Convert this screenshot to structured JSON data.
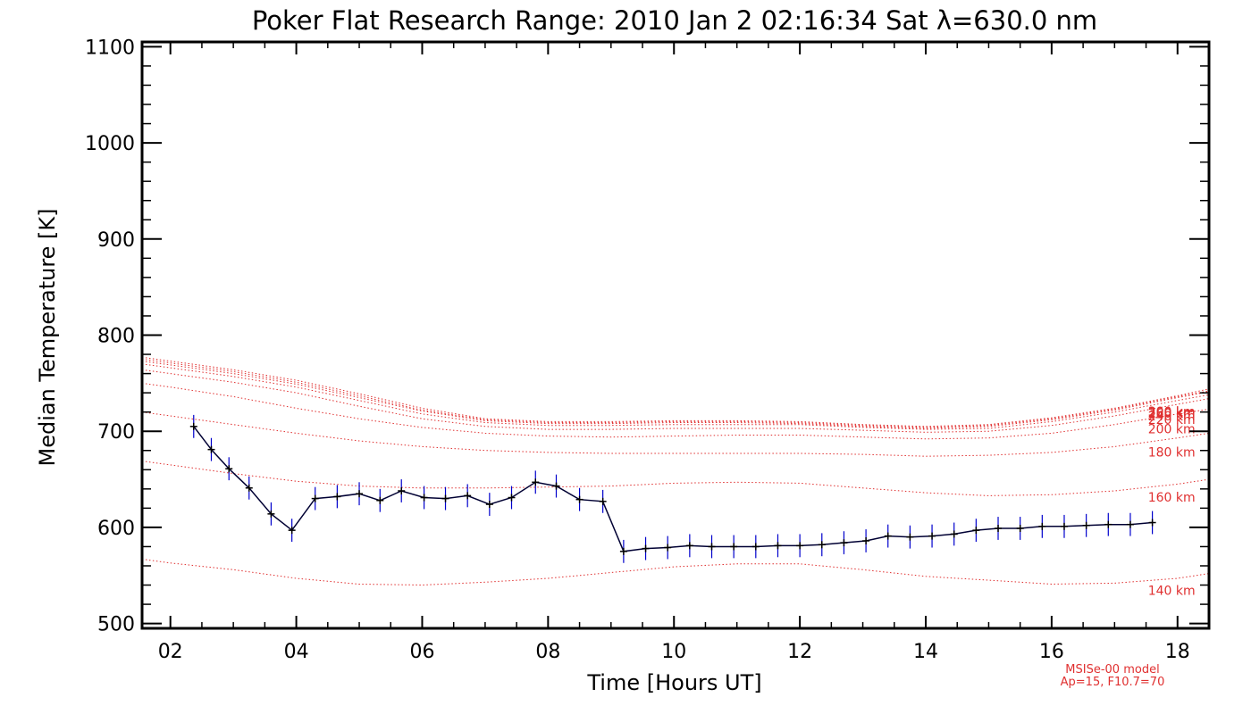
{
  "chart_data": {
    "type": "line",
    "title": "Poker Flat Research Range: 2010 Jan  2 02:16:34 Sat λ=630.0 nm",
    "xlabel": "Time [Hours UT]",
    "ylabel": "Median Temperature [K]",
    "xlim": [
      1.55,
      18.5
    ],
    "ylim": [
      495,
      1105
    ],
    "xticks": [
      2,
      4,
      6,
      8,
      10,
      12,
      14,
      16,
      18
    ],
    "xtick_labels": [
      "02",
      "04",
      "06",
      "08",
      "10",
      "12",
      "14",
      "16",
      "18"
    ],
    "yticks": [
      500,
      600,
      700,
      800,
      900,
      1000,
      1100
    ],
    "ytick_labels": [
      "500",
      "600",
      "700",
      "800",
      "900",
      "1000",
      "1100"
    ],
    "grid": false,
    "measured": {
      "color": "#000033",
      "errorbar_color": "#0000cc",
      "errorbar_halfwidth": 12,
      "x": [
        2.37,
        2.65,
        2.93,
        3.25,
        3.6,
        3.93,
        4.3,
        4.65,
        5.0,
        5.33,
        5.67,
        6.03,
        6.37,
        6.72,
        7.07,
        7.42,
        7.8,
        8.13,
        8.5,
        8.87,
        9.2,
        9.55,
        9.9,
        10.25,
        10.6,
        10.95,
        11.3,
        11.65,
        12.0,
        12.35,
        12.7,
        13.05,
        13.4,
        13.75,
        14.1,
        14.45,
        14.8,
        15.15,
        15.5,
        15.85,
        16.2,
        16.55,
        16.9,
        17.25,
        17.6
      ],
      "y": [
        705,
        681,
        661,
        641,
        614,
        597,
        630,
        632,
        635,
        628,
        638,
        631,
        630,
        633,
        624,
        631,
        647,
        643,
        629,
        627,
        575,
        578,
        579,
        581,
        580,
        580,
        580,
        581,
        581,
        582,
        584,
        586,
        591,
        590,
        591,
        593,
        597,
        599,
        599,
        601,
        601,
        602,
        603,
        603,
        605
      ]
    },
    "model_color": "#e03030",
    "model_note": [
      "MSISe-00 model",
      "Ap=15, F10.7=70"
    ],
    "model_series": [
      {
        "label": "140 km",
        "label_x": 17.53,
        "x": [
          1.55,
          2,
          3,
          4,
          5,
          6,
          7,
          8,
          9,
          10,
          11,
          12,
          13,
          14,
          15,
          16,
          17,
          18,
          18.5
        ],
        "y": [
          567,
          563,
          556,
          547,
          541,
          540,
          543,
          547,
          553,
          559,
          562,
          562,
          556,
          549,
          545,
          541,
          542,
          547,
          552
        ]
      },
      {
        "label": "160 km",
        "label_x": 17.53,
        "x": [
          1.55,
          2,
          3,
          4,
          5,
          6,
          7,
          8,
          9,
          10,
          11,
          12,
          13,
          14,
          15,
          16,
          17,
          18,
          18.5
        ],
        "y": [
          669,
          665,
          656,
          648,
          643,
          641,
          641,
          642,
          643,
          646,
          647,
          646,
          641,
          636,
          633,
          634,
          638,
          645,
          650
        ]
      },
      {
        "label": "180 km",
        "label_x": 17.53,
        "x": [
          1.55,
          2,
          3,
          4,
          5,
          6,
          7,
          8,
          9,
          10,
          11,
          12,
          13,
          14,
          15,
          16,
          17,
          18,
          18.5
        ],
        "y": [
          720,
          716,
          707,
          698,
          690,
          684,
          680,
          678,
          677,
          677,
          677,
          677,
          676,
          674,
          675,
          678,
          684,
          693,
          698
        ]
      },
      {
        "label": "200 km",
        "label_x": 17.53,
        "x": [
          1.55,
          2,
          3,
          4,
          5,
          6,
          7,
          8,
          9,
          10,
          11,
          12,
          13,
          14,
          15,
          16,
          17,
          18,
          18.5
        ],
        "y": [
          750,
          746,
          736,
          724,
          713,
          704,
          698,
          695,
          694,
          695,
          696,
          696,
          694,
          692,
          693,
          698,
          707,
          718,
          723
        ]
      },
      {
        "label": "220 km",
        "label_x": 17.53,
        "x": [
          1.55,
          2,
          3,
          4,
          5,
          6,
          7,
          8,
          9,
          10,
          11,
          12,
          13,
          14,
          15,
          16,
          17,
          18,
          18.5
        ],
        "y": [
          764,
          760,
          751,
          740,
          726,
          713,
          705,
          702,
          702,
          703,
          703,
          703,
          701,
          699,
          700,
          706,
          716,
          728,
          734
        ]
      },
      {
        "label": "240 km",
        "label_x": 17.53,
        "x": [
          1.55,
          2,
          3,
          4,
          5,
          6,
          7,
          8,
          9,
          10,
          11,
          12,
          13,
          14,
          15,
          16,
          17,
          18,
          18.5
        ],
        "y": [
          770,
          766,
          757,
          746,
          732,
          718,
          709,
          706,
          706,
          707,
          707,
          707,
          704,
          702,
          703,
          710,
          720,
          732,
          738
        ]
      },
      {
        "label": "260 km",
        "label_x": 17.53,
        "x": [
          1.55,
          2,
          3,
          4,
          5,
          6,
          7,
          8,
          9,
          10,
          11,
          12,
          13,
          14,
          15,
          16,
          17,
          18,
          18.5
        ],
        "y": [
          773,
          769,
          760,
          749,
          735,
          721,
          711,
          708,
          708,
          709,
          709,
          708,
          705,
          703,
          705,
          712,
          722,
          735,
          741
        ]
      },
      {
        "label": "280 km",
        "label_x": 17.53,
        "x": [
          1.55,
          2,
          3,
          4,
          5,
          6,
          7,
          8,
          9,
          10,
          11,
          12,
          13,
          14,
          15,
          16,
          17,
          18,
          18.5
        ],
        "y": [
          775,
          771,
          762,
          751,
          737,
          722,
          712,
          709,
          709,
          710,
          710,
          709,
          706,
          704,
          706,
          713,
          723,
          736,
          742
        ]
      },
      {
        "label": "300 km",
        "label_x": 17.53,
        "x": [
          1.55,
          2,
          3,
          4,
          5,
          6,
          7,
          8,
          9,
          10,
          11,
          12,
          13,
          14,
          15,
          16,
          17,
          18,
          18.5
        ],
        "y": [
          777,
          773,
          764,
          753,
          739,
          724,
          713,
          710,
          710,
          711,
          711,
          710,
          707,
          705,
          707,
          714,
          724,
          737,
          744
        ]
      }
    ]
  }
}
